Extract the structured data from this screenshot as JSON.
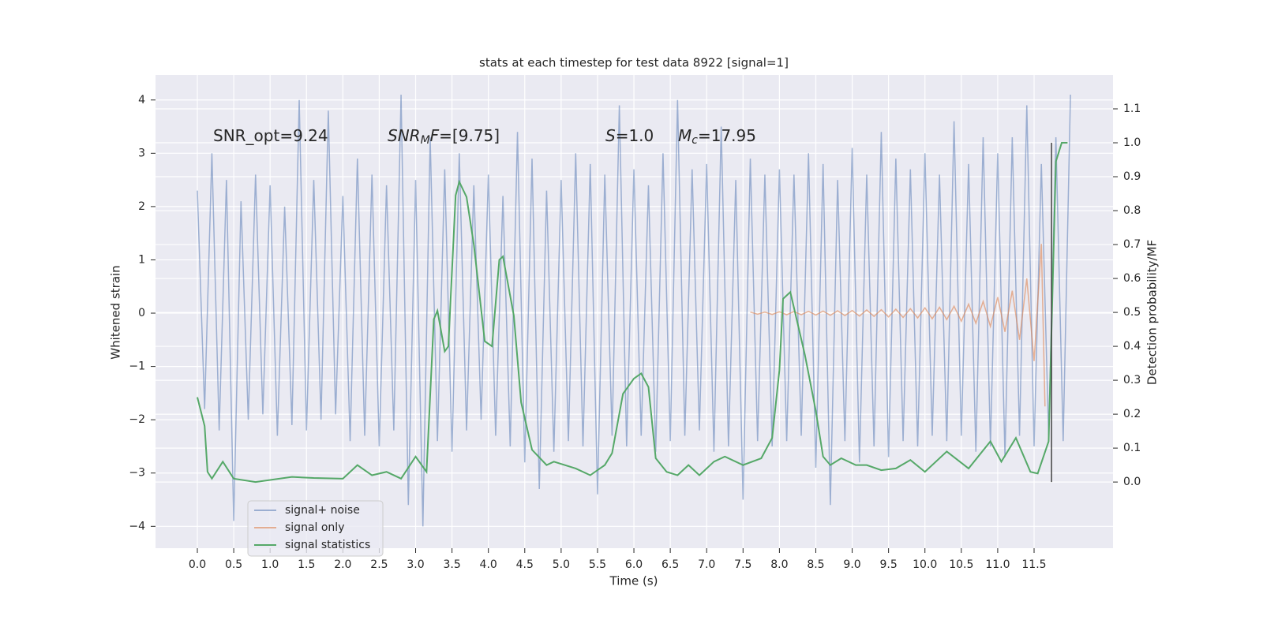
{
  "chart_data": {
    "type": "line",
    "title": "stats at each timestep for test data 8922 [signal=1]",
    "x_label": "Time (s)",
    "y_label": "Whitened strain",
    "y2_label": "Detection probability/MF",
    "xlim": [
      -0.575,
      12.585
    ],
    "ylim": [
      -4.41,
      4.47
    ],
    "y2lim": [
      -0.195,
      1.2
    ],
    "xticks": [
      {
        "value": 0,
        "label": "0.0"
      },
      0.5,
      {
        "value": 1,
        "label": "1.0"
      },
      1.5,
      {
        "value": 2,
        "label": "2.0"
      },
      2.5,
      {
        "value": 3,
        "label": "3.0"
      },
      3.5,
      {
        "value": 4,
        "label": "4.0"
      },
      4.5,
      {
        "value": 5,
        "label": "5.0"
      },
      5.5,
      {
        "value": 6,
        "label": "6.0"
      },
      6.5,
      {
        "value": 7,
        "label": "7.0"
      },
      7.5,
      {
        "value": 8,
        "label": "8.0"
      },
      8.5,
      {
        "value": 9,
        "label": "9.0"
      },
      9.5,
      {
        "value": 10,
        "label": "10.0"
      },
      10.5,
      {
        "value": 11,
        "label": "11.0"
      },
      11.5
    ],
    "yticks": [
      {
        "value": -4,
        "label": "−4"
      },
      {
        "value": -3,
        "label": "−3"
      },
      {
        "value": -2,
        "label": "−2"
      },
      {
        "value": -1,
        "label": "−1"
      },
      0,
      1,
      2,
      3,
      4
    ],
    "y2ticks": [
      {
        "value": 0,
        "label": "0.0"
      },
      0.1,
      0.2,
      0.3,
      0.4,
      0.5,
      0.6,
      0.7,
      0.8,
      0.9,
      {
        "value": 1,
        "label": "1.0"
      },
      1.1
    ],
    "grid": true,
    "legend": "lower left",
    "series": [
      {
        "name": "signal+ noise",
        "color": "#4c72b0",
        "opacity": 0.5,
        "x": [
          0.0,
          0.1,
          0.2,
          0.3,
          0.4,
          0.5,
          0.6,
          0.7,
          0.8,
          0.9,
          1.0,
          1.1,
          1.2,
          1.3,
          1.4,
          1.5,
          1.6,
          1.7,
          1.8,
          1.9,
          2.0,
          2.1,
          2.2,
          2.3,
          2.4,
          2.5,
          2.6,
          2.7,
          2.8,
          2.9,
          3.0,
          3.1,
          3.2,
          3.3,
          3.4,
          3.5,
          3.6,
          3.7,
          3.8,
          3.9,
          4.0,
          4.1,
          4.2,
          4.3,
          4.4,
          4.5,
          4.6,
          4.7,
          4.8,
          4.9,
          5.0,
          5.1,
          5.2,
          5.3,
          5.4,
          5.5,
          5.6,
          5.7,
          5.8,
          5.9,
          6.0,
          6.1,
          6.2,
          6.3,
          6.4,
          6.5,
          6.6,
          6.7,
          6.8,
          6.9,
          7.0,
          7.1,
          7.2,
          7.3,
          7.4,
          7.5,
          7.6,
          7.7,
          7.8,
          7.9,
          8.0,
          8.1,
          8.2,
          8.3,
          8.4,
          8.5,
          8.6,
          8.7,
          8.8,
          8.9,
          9.0,
          9.1,
          9.2,
          9.3,
          9.4,
          9.5,
          9.6,
          9.7,
          9.8,
          9.9,
          10.0,
          10.1,
          10.2,
          10.3,
          10.4,
          10.5,
          10.6,
          10.7,
          10.8,
          10.9,
          11.0,
          11.1,
          11.2,
          11.3,
          11.4,
          11.5,
          11.6,
          11.7,
          11.8,
          11.9,
          12.0
        ],
        "values": [
          2.3,
          -1.8,
          3.0,
          -2.2,
          2.5,
          -3.9,
          2.1,
          -2.0,
          2.6,
          -1.9,
          2.4,
          -2.3,
          2.0,
          -2.1,
          4.0,
          -2.2,
          2.5,
          -2.0,
          3.8,
          -1.9,
          2.2,
          -2.4,
          2.9,
          -2.3,
          2.6,
          -2.5,
          2.4,
          -2.2,
          4.1,
          -3.6,
          2.5,
          -4.0,
          3.3,
          -2.4,
          2.7,
          -2.6,
          3.0,
          -2.2,
          2.4,
          -2.0,
          2.6,
          -2.3,
          2.2,
          -2.5,
          3.4,
          -2.8,
          2.9,
          -3.3,
          2.3,
          -2.6,
          2.5,
          -2.4,
          3.0,
          -2.5,
          2.8,
          -3.4,
          2.6,
          -2.3,
          3.9,
          -2.5,
          2.7,
          -2.3,
          2.4,
          -2.6,
          3.0,
          -2.4,
          4.0,
          -2.3,
          2.7,
          -2.2,
          2.8,
          -2.6,
          3.5,
          -2.5,
          2.5,
          -3.5,
          2.9,
          -2.4,
          2.6,
          -2.5,
          2.7,
          -2.4,
          2.6,
          -2.3,
          3.0,
          -2.9,
          2.8,
          -3.6,
          2.5,
          -2.4,
          3.1,
          -2.8,
          2.6,
          -2.5,
          3.4,
          -2.7,
          2.9,
          -2.4,
          2.7,
          -2.5,
          3.0,
          -2.3,
          2.6,
          -2.4,
          3.6,
          -2.3,
          2.8,
          -2.6,
          3.3,
          -2.5,
          3.0,
          -2.7,
          3.3,
          -2.3,
          3.9,
          -2.5,
          2.8,
          -2.3,
          3.3,
          -2.4,
          4.1
        ]
      },
      {
        "name": "signal only",
        "color": "#dd8452",
        "opacity": 0.6,
        "x": [
          7.6,
          7.7,
          7.8,
          7.9,
          8.0,
          8.1,
          8.2,
          8.3,
          8.4,
          8.5,
          8.6,
          8.7,
          8.8,
          8.9,
          9.0,
          9.1,
          9.2,
          9.3,
          9.4,
          9.5,
          9.6,
          9.7,
          9.8,
          9.9,
          10.0,
          10.1,
          10.2,
          10.3,
          10.4,
          10.5,
          10.6,
          10.7,
          10.8,
          10.9,
          11.0,
          11.1,
          11.2,
          11.3,
          11.4,
          11.5,
          11.6,
          11.65
        ],
        "values": [
          0.02,
          -0.02,
          0.02,
          -0.025,
          0.025,
          -0.03,
          0.03,
          -0.03,
          0.035,
          -0.035,
          0.04,
          -0.04,
          0.045,
          -0.045,
          0.05,
          -0.055,
          0.06,
          -0.06,
          0.065,
          -0.07,
          0.075,
          -0.08,
          0.085,
          -0.09,
          0.1,
          -0.105,
          0.11,
          -0.12,
          0.13,
          -0.15,
          0.17,
          -0.19,
          0.22,
          -0.25,
          0.3,
          -0.35,
          0.42,
          -0.5,
          0.65,
          -0.9,
          1.3,
          -1.75
        ]
      },
      {
        "name": "signal statistics",
        "color": "#55a868",
        "opacity": 1,
        "axis": "y2",
        "x": [
          0.0,
          0.1,
          0.14,
          0.2,
          0.35,
          0.5,
          0.8,
          1.3,
          1.6,
          2.0,
          2.2,
          2.4,
          2.6,
          2.8,
          3.0,
          3.15,
          3.25,
          3.3,
          3.4,
          3.45,
          3.55,
          3.6,
          3.7,
          3.8,
          3.95,
          4.05,
          4.15,
          4.2,
          4.35,
          4.45,
          4.6,
          4.8,
          4.9,
          5.2,
          5.4,
          5.6,
          5.7,
          5.85,
          6.0,
          6.1,
          6.2,
          6.3,
          6.45,
          6.6,
          6.75,
          6.9,
          7.1,
          7.25,
          7.5,
          7.75,
          7.9,
          8.0,
          8.05,
          8.15,
          8.35,
          8.5,
          8.6,
          8.7,
          8.85,
          9.05,
          9.2,
          9.4,
          9.6,
          9.8,
          10.0,
          10.3,
          10.6,
          10.9,
          11.05,
          11.25,
          11.45,
          11.55,
          11.7,
          11.8,
          11.88,
          11.96
        ],
        "values": [
          0.25,
          0.165,
          0.03,
          0.01,
          0.06,
          0.01,
          0.0,
          0.015,
          0.012,
          0.01,
          0.05,
          0.02,
          0.03,
          0.01,
          0.075,
          0.03,
          0.48,
          0.505,
          0.385,
          0.4,
          0.845,
          0.885,
          0.84,
          0.7,
          0.415,
          0.4,
          0.655,
          0.665,
          0.49,
          0.235,
          0.095,
          0.05,
          0.06,
          0.04,
          0.02,
          0.05,
          0.085,
          0.26,
          0.305,
          0.32,
          0.28,
          0.07,
          0.03,
          0.02,
          0.05,
          0.02,
          0.06,
          0.075,
          0.05,
          0.07,
          0.13,
          0.33,
          0.54,
          0.56,
          0.375,
          0.21,
          0.075,
          0.05,
          0.07,
          0.05,
          0.05,
          0.035,
          0.04,
          0.065,
          0.03,
          0.09,
          0.04,
          0.12,
          0.06,
          0.13,
          0.03,
          0.025,
          0.12,
          0.945,
          1.0,
          1.0
        ]
      }
    ],
    "vline": {
      "x": 11.74,
      "ymin": 0,
      "ymax": 1,
      "axis": "y2",
      "color": "#444444"
    },
    "annotations": [
      [
        {
          "text": "SNR_opt=9.24"
        }
      ],
      [
        {
          "text": "SNR",
          "italic": true
        },
        {
          "text": "M",
          "italic": true,
          "sub": true
        },
        {
          "text": "F",
          "italic": true
        },
        {
          "text": "=[9.75]"
        }
      ],
      [
        {
          "text": "S",
          "italic": true
        },
        {
          "text": "=1.0"
        }
      ],
      [
        {
          "text": "M",
          "italic": true
        },
        {
          "text": "c",
          "italic": true,
          "sub": true
        },
        {
          "text": "=17.95"
        }
      ]
    ]
  }
}
